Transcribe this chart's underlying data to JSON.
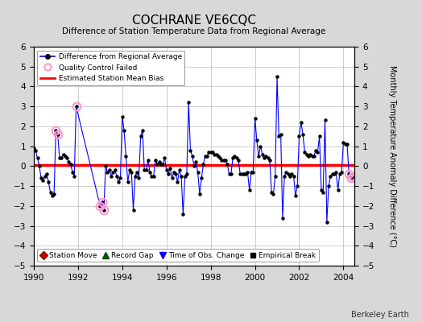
{
  "title": "COCHRANE VE6CQC",
  "subtitle": "Difference of Station Temperature Data from Regional Average",
  "ylabel": "Monthly Temperature Anomaly Difference (°C)",
  "xlim": [
    1990,
    2004.5
  ],
  "ylim": [
    -5,
    6
  ],
  "yticks": [
    -5,
    -4,
    -3,
    -2,
    -1,
    0,
    1,
    2,
    3,
    4,
    5,
    6
  ],
  "xticks": [
    1990,
    1992,
    1994,
    1996,
    1998,
    2000,
    2002,
    2004
  ],
  "bias_value": 0.05,
  "line_color": "#0000ff",
  "qc_color": "#ff99cc",
  "bias_color": "#ff0000",
  "background_color": "#d8d8d8",
  "plot_bg_color": "#ffffff",
  "watermark": "Berkeley Earth",
  "series": [
    [
      1990.0,
      0.9
    ],
    [
      1990.083,
      0.8
    ],
    [
      1990.167,
      0.4
    ],
    [
      1990.25,
      0.0
    ],
    [
      1990.333,
      -0.6
    ],
    [
      1990.417,
      -0.7
    ],
    [
      1990.5,
      -0.5
    ],
    [
      1990.583,
      -0.4
    ],
    [
      1990.667,
      -0.8
    ],
    [
      1990.75,
      -1.3
    ],
    [
      1990.833,
      -1.5
    ],
    [
      1990.917,
      -1.4
    ],
    [
      1991.0,
      1.8
    ],
    [
      1991.083,
      1.6
    ],
    [
      1991.167,
      0.4
    ],
    [
      1991.25,
      0.4
    ],
    [
      1991.333,
      0.6
    ],
    [
      1991.417,
      0.5
    ],
    [
      1991.5,
      0.4
    ],
    [
      1991.583,
      0.2
    ],
    [
      1991.667,
      0.1
    ],
    [
      1991.75,
      -0.3
    ],
    [
      1991.833,
      -0.5
    ],
    [
      1991.917,
      3.0
    ],
    [
      1993.0,
      -2.0
    ],
    [
      1993.083,
      -1.8
    ],
    [
      1993.167,
      -2.2
    ],
    [
      1993.25,
      0.0
    ],
    [
      1993.333,
      -0.3
    ],
    [
      1993.417,
      -0.2
    ],
    [
      1993.5,
      -0.5
    ],
    [
      1993.583,
      -0.3
    ],
    [
      1993.667,
      -0.2
    ],
    [
      1993.75,
      -0.5
    ],
    [
      1993.833,
      -0.8
    ],
    [
      1993.917,
      -0.6
    ],
    [
      1994.0,
      2.5
    ],
    [
      1994.083,
      1.8
    ],
    [
      1994.167,
      0.5
    ],
    [
      1994.25,
      -0.8
    ],
    [
      1994.333,
      -0.2
    ],
    [
      1994.417,
      -0.3
    ],
    [
      1994.5,
      -2.2
    ],
    [
      1994.583,
      -0.5
    ],
    [
      1994.667,
      -0.3
    ],
    [
      1994.75,
      -0.6
    ],
    [
      1994.833,
      1.5
    ],
    [
      1994.917,
      1.8
    ],
    [
      1995.0,
      -0.2
    ],
    [
      1995.083,
      -0.2
    ],
    [
      1995.167,
      0.3
    ],
    [
      1995.25,
      -0.3
    ],
    [
      1995.333,
      -0.5
    ],
    [
      1995.417,
      -0.5
    ],
    [
      1995.5,
      0.3
    ],
    [
      1995.583,
      0.1
    ],
    [
      1995.667,
      0.2
    ],
    [
      1995.75,
      0.1
    ],
    [
      1995.833,
      0.1
    ],
    [
      1995.917,
      0.4
    ],
    [
      1996.0,
      -0.2
    ],
    [
      1996.083,
      -0.4
    ],
    [
      1996.167,
      -0.1
    ],
    [
      1996.25,
      -0.6
    ],
    [
      1996.333,
      -0.3
    ],
    [
      1996.417,
      -0.4
    ],
    [
      1996.5,
      -0.8
    ],
    [
      1996.583,
      -0.2
    ],
    [
      1996.667,
      -0.5
    ],
    [
      1996.75,
      -2.4
    ],
    [
      1996.833,
      -0.5
    ],
    [
      1996.917,
      -0.4
    ],
    [
      1997.0,
      3.2
    ],
    [
      1997.083,
      0.8
    ],
    [
      1997.167,
      0.5
    ],
    [
      1997.25,
      0.0
    ],
    [
      1997.333,
      0.2
    ],
    [
      1997.417,
      -0.3
    ],
    [
      1997.5,
      -1.4
    ],
    [
      1997.583,
      -0.6
    ],
    [
      1997.667,
      0.1
    ],
    [
      1997.75,
      0.5
    ],
    [
      1997.833,
      0.5
    ],
    [
      1997.917,
      0.7
    ],
    [
      1998.0,
      0.7
    ],
    [
      1998.083,
      0.7
    ],
    [
      1998.167,
      0.6
    ],
    [
      1998.25,
      0.6
    ],
    [
      1998.333,
      0.5
    ],
    [
      1998.417,
      0.4
    ],
    [
      1998.5,
      0.3
    ],
    [
      1998.583,
      0.3
    ],
    [
      1998.667,
      0.3
    ],
    [
      1998.75,
      0.1
    ],
    [
      1998.833,
      -0.4
    ],
    [
      1998.917,
      -0.4
    ],
    [
      1999.0,
      0.4
    ],
    [
      1999.083,
      0.5
    ],
    [
      1999.167,
      0.4
    ],
    [
      1999.25,
      0.3
    ],
    [
      1999.333,
      -0.4
    ],
    [
      1999.417,
      -0.4
    ],
    [
      1999.5,
      -0.4
    ],
    [
      1999.583,
      -0.4
    ],
    [
      1999.667,
      -0.3
    ],
    [
      1999.75,
      -1.2
    ],
    [
      1999.833,
      -0.3
    ],
    [
      1999.917,
      -0.3
    ],
    [
      2000.0,
      2.4
    ],
    [
      2000.083,
      1.3
    ],
    [
      2000.167,
      0.5
    ],
    [
      2000.25,
      1.0
    ],
    [
      2000.333,
      0.6
    ],
    [
      2000.417,
      0.4
    ],
    [
      2000.5,
      0.5
    ],
    [
      2000.583,
      0.4
    ],
    [
      2000.667,
      0.3
    ],
    [
      2000.75,
      -1.3
    ],
    [
      2000.833,
      -1.4
    ],
    [
      2000.917,
      -0.5
    ],
    [
      2001.0,
      4.5
    ],
    [
      2001.083,
      1.5
    ],
    [
      2001.167,
      1.6
    ],
    [
      2001.25,
      -2.6
    ],
    [
      2001.333,
      -0.5
    ],
    [
      2001.417,
      -0.3
    ],
    [
      2001.5,
      -0.4
    ],
    [
      2001.583,
      -0.5
    ],
    [
      2001.667,
      -0.4
    ],
    [
      2001.75,
      -0.5
    ],
    [
      2001.833,
      -1.5
    ],
    [
      2001.917,
      -1.0
    ],
    [
      2002.0,
      1.5
    ],
    [
      2002.083,
      2.2
    ],
    [
      2002.167,
      1.6
    ],
    [
      2002.25,
      0.7
    ],
    [
      2002.333,
      0.6
    ],
    [
      2002.417,
      0.5
    ],
    [
      2002.5,
      0.6
    ],
    [
      2002.583,
      0.5
    ],
    [
      2002.667,
      0.5
    ],
    [
      2002.75,
      0.8
    ],
    [
      2002.833,
      0.7
    ],
    [
      2002.917,
      1.5
    ],
    [
      2003.0,
      -1.2
    ],
    [
      2003.083,
      -1.3
    ],
    [
      2003.167,
      2.3
    ],
    [
      2003.25,
      -2.8
    ],
    [
      2003.333,
      -1.0
    ],
    [
      2003.417,
      -0.5
    ],
    [
      2003.5,
      -0.4
    ],
    [
      2003.583,
      -0.4
    ],
    [
      2003.667,
      -0.3
    ],
    [
      2003.75,
      -1.2
    ],
    [
      2003.833,
      -0.4
    ],
    [
      2003.917,
      -0.3
    ],
    [
      2004.0,
      1.2
    ],
    [
      2004.083,
      1.1
    ],
    [
      2004.167,
      1.1
    ],
    [
      2004.25,
      -0.4
    ],
    [
      2004.333,
      -0.6
    ],
    [
      2004.417,
      -0.5
    ]
  ],
  "qc_failed": [
    [
      1991.0,
      1.8
    ],
    [
      1991.083,
      1.6
    ],
    [
      1991.917,
      3.0
    ],
    [
      1993.0,
      -2.0
    ],
    [
      1993.083,
      -1.8
    ],
    [
      1993.167,
      -2.2
    ],
    [
      2004.25,
      -0.4
    ],
    [
      2004.333,
      -0.6
    ],
    [
      2004.417,
      -0.5
    ]
  ],
  "legend1_labels": [
    "Difference from Regional Average",
    "Quality Control Failed",
    "Estimated Station Mean Bias"
  ],
  "legend2_labels": [
    "Station Move",
    "Record Gap",
    "Time of Obs. Change",
    "Empirical Break"
  ]
}
